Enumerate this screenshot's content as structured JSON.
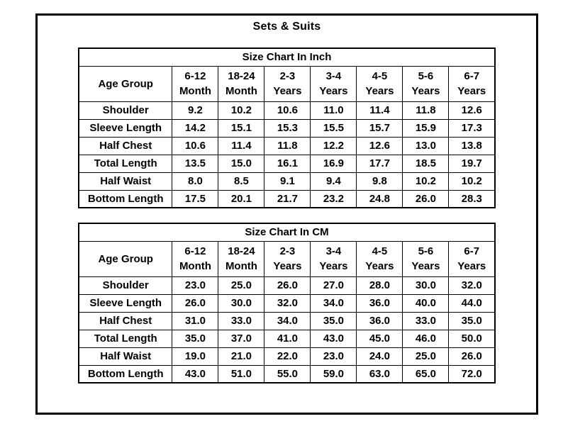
{
  "page": {
    "title": "Sets & Suits"
  },
  "tables": [
    {
      "title": "Size Chart In Inch",
      "corner_label": "Age Group",
      "columns": [
        "6-12\nMonth",
        "18-24\nMonth",
        "2-3\nYears",
        "3-4\nYears",
        "4-5\nYears",
        "5-6\nYears",
        "6-7\nYears"
      ],
      "rows": [
        {
          "label": "Shoulder",
          "values": [
            "9.2",
            "10.2",
            "10.6",
            "11.0",
            "11.4",
            "11.8",
            "12.6"
          ]
        },
        {
          "label": "Sleeve Length",
          "values": [
            "14.2",
            "15.1",
            "15.3",
            "15.5",
            "15.7",
            "15.9",
            "17.3"
          ]
        },
        {
          "label": "Half Chest",
          "values": [
            "10.6",
            "11.4",
            "11.8",
            "12.2",
            "12.6",
            "13.0",
            "13.8"
          ]
        },
        {
          "label": "Total Length",
          "values": [
            "13.5",
            "15.0",
            "16.1",
            "16.9",
            "17.7",
            "18.5",
            "19.7"
          ]
        },
        {
          "label": "Half Waist",
          "values": [
            "8.0",
            "8.5",
            "9.1",
            "9.4",
            "9.8",
            "10.2",
            "10.2"
          ]
        },
        {
          "label": "Bottom Length",
          "values": [
            "17.5",
            "20.1",
            "21.7",
            "23.2",
            "24.8",
            "26.0",
            "28.3"
          ]
        }
      ]
    },
    {
      "title": "Size Chart In CM",
      "corner_label": "Age Group",
      "columns": [
        "6-12\nMonth",
        "18-24\nMonth",
        "2-3\nYears",
        "3-4\nYears",
        "4-5\nYears",
        "5-6\nYears",
        "6-7\nYears"
      ],
      "rows": [
        {
          "label": "Shoulder",
          "values": [
            "23.0",
            "25.0",
            "26.0",
            "27.0",
            "28.0",
            "30.0",
            "32.0"
          ]
        },
        {
          "label": "Sleeve Length",
          "values": [
            "26.0",
            "30.0",
            "32.0",
            "34.0",
            "36.0",
            "40.0",
            "44.0"
          ]
        },
        {
          "label": "Half Chest",
          "values": [
            "31.0",
            "33.0",
            "34.0",
            "35.0",
            "36.0",
            "33.0",
            "35.0"
          ]
        },
        {
          "label": "Total Length",
          "values": [
            "35.0",
            "37.0",
            "41.0",
            "43.0",
            "45.0",
            "46.0",
            "50.0"
          ]
        },
        {
          "label": "Half Waist",
          "values": [
            "19.0",
            "21.0",
            "22.0",
            "23.0",
            "24.0",
            "25.0",
            "26.0"
          ]
        },
        {
          "label": "Bottom Length",
          "values": [
            "43.0",
            "51.0",
            "55.0",
            "59.0",
            "63.0",
            "65.0",
            "72.0"
          ]
        }
      ]
    }
  ],
  "colors": {
    "text": "#000000",
    "background": "#ffffff",
    "border": "#000000"
  }
}
